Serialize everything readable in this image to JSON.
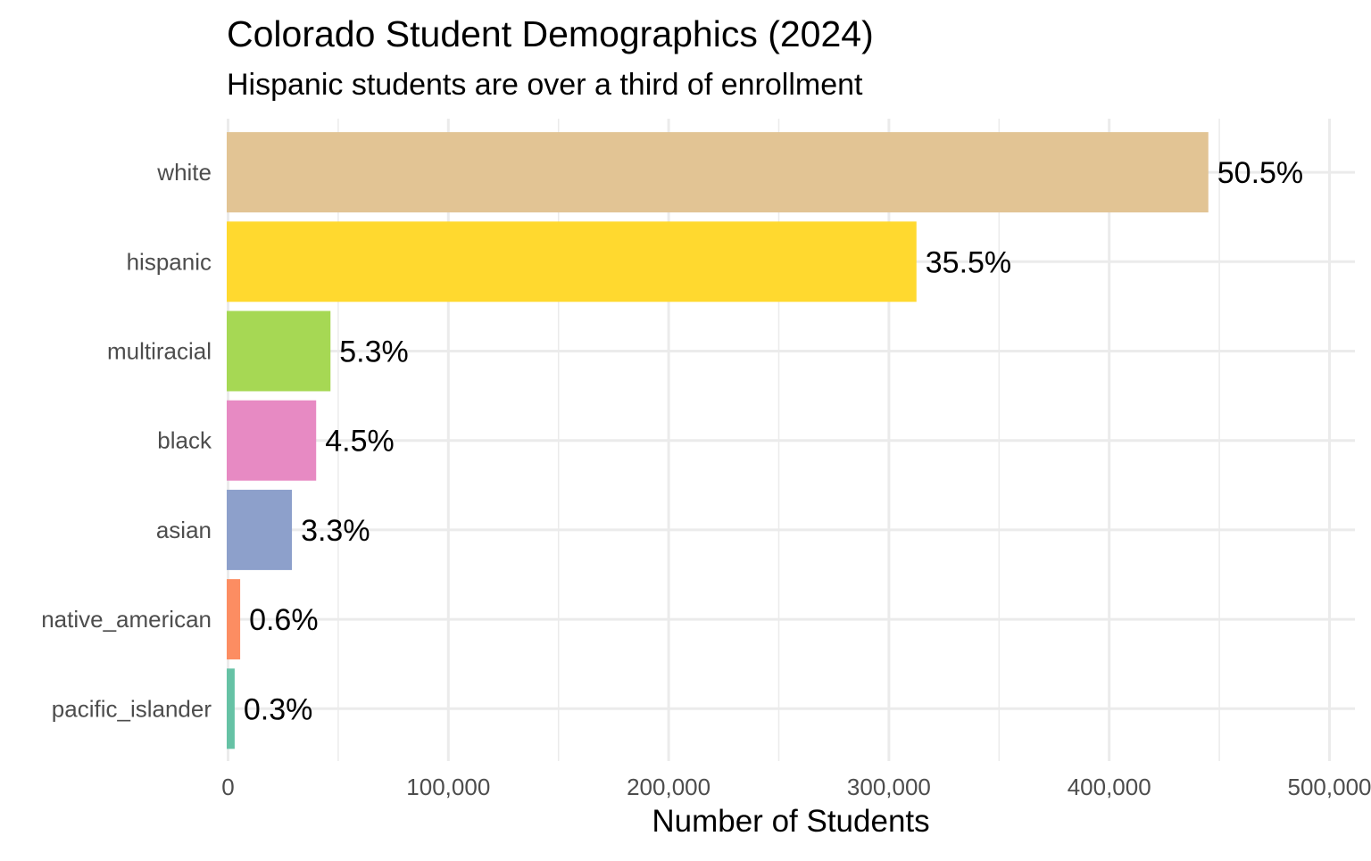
{
  "chart_data": {
    "type": "bar",
    "orientation": "horizontal",
    "title": "Colorado Student Demographics (2024)",
    "subtitle": "Hispanic students are over a third of enrollment",
    "xlabel": "Number of Students",
    "ylabel": "",
    "xlim": [
      0,
      500000
    ],
    "x_ticks": [
      0,
      100000,
      200000,
      300000,
      400000,
      500000
    ],
    "x_tick_labels": [
      "0",
      "100,000",
      "200,000",
      "300,000",
      "400,000",
      "500,000"
    ],
    "grid": true,
    "legend": "none",
    "categories": [
      "white",
      "hispanic",
      "multiracial",
      "black",
      "asian",
      "native_american",
      "pacific_islander"
    ],
    "values": [
      445000,
      312500,
      46500,
      40000,
      29000,
      5500,
      3000
    ],
    "data_labels": [
      "50.5%",
      "35.5%",
      "5.3%",
      "4.5%",
      "3.3%",
      "0.6%",
      "0.3%"
    ],
    "colors": [
      "#E2C494",
      "#FFD92F",
      "#A6D854",
      "#E78AC3",
      "#8DA0CB",
      "#FC8D62",
      "#66C2A5"
    ]
  }
}
